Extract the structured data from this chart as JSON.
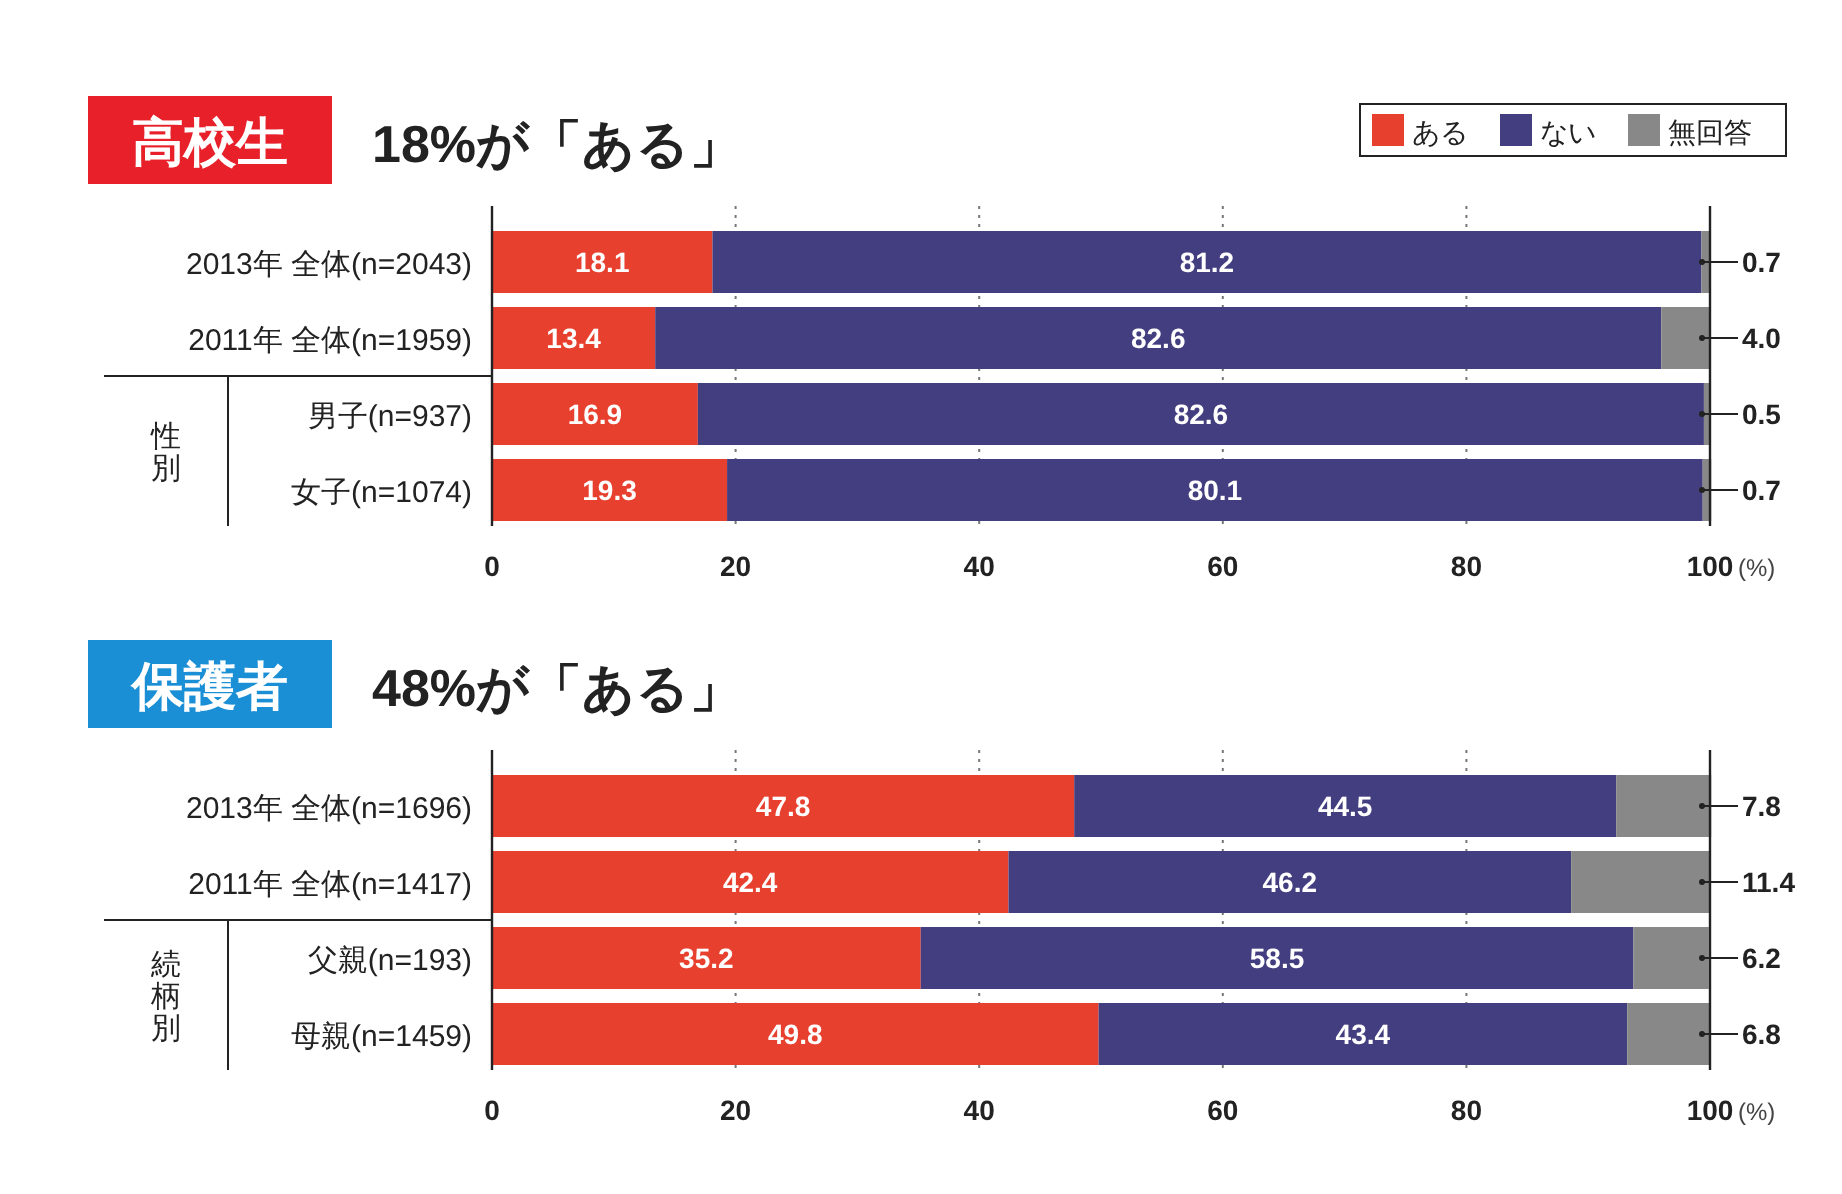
{
  "chart_data": [
    {
      "type": "bar",
      "orientation": "horizontal",
      "stacked": true,
      "title": "高校生",
      "subtitle": "18%が「ある」",
      "xlabel": "(%)",
      "categories": [
        "2013年 全体(n=2043)",
        "2011年 全体(n=1959)",
        "男子(n=937)",
        "女子(n=1074)"
      ],
      "annotations": [
        "性別"
      ],
      "series": [
        {
          "name": "ある",
          "color": "#e8402f",
          "values": [
            18.1,
            13.4,
            16.9,
            19.3
          ],
          "value_labels": [
            "18.1",
            "13.4",
            "16.9",
            "19.3"
          ]
        },
        {
          "name": "ない",
          "color": "#433e7f",
          "values": [
            81.2,
            82.6,
            82.6,
            80.1
          ],
          "value_labels": [
            "81.2",
            "82.6",
            "82.6",
            "80.1"
          ]
        },
        {
          "name": "無回答",
          "color": "#888888",
          "values": [
            0.7,
            4.0,
            0.5,
            0.7
          ],
          "value_labels": [
            "0.7",
            "4.0",
            "0.5",
            "0.7"
          ]
        }
      ],
      "xlim": [
        0,
        100
      ],
      "xticks": [
        0,
        20,
        40,
        60,
        80,
        100
      ],
      "grid": "x",
      "legend": "top right"
    },
    {
      "type": "bar",
      "orientation": "horizontal",
      "stacked": true,
      "title": "保護者",
      "subtitle": "48%が「ある」",
      "xlabel": "(%)",
      "categories": [
        "2013年 全体(n=1696)",
        "2011年 全体(n=1417)",
        "父親(n=193)",
        "母親(n=1459)"
      ],
      "annotations": [
        "続柄別"
      ],
      "series": [
        {
          "color": "#e8402f",
          "values": [
            47.8,
            42.4,
            35.2,
            49.8
          ],
          "value_labels": [
            "47.8",
            "42.4",
            "35.2",
            "49.8"
          ]
        },
        {
          "color": "#433e7f",
          "values": [
            44.5,
            46.2,
            58.5,
            43.4
          ],
          "value_labels": [
            "44.5",
            "46.2",
            "58.5",
            "43.4"
          ]
        },
        {
          "color": "#888888",
          "values": [
            7.8,
            11.4,
            6.2,
            6.8
          ],
          "value_labels": [
            "7.8",
            "11.4",
            "6.2",
            "6.8"
          ]
        }
      ],
      "xlim": [
        0,
        100
      ],
      "xticks": [
        0,
        20,
        40,
        60,
        80,
        100
      ],
      "grid": "x"
    }
  ]
}
